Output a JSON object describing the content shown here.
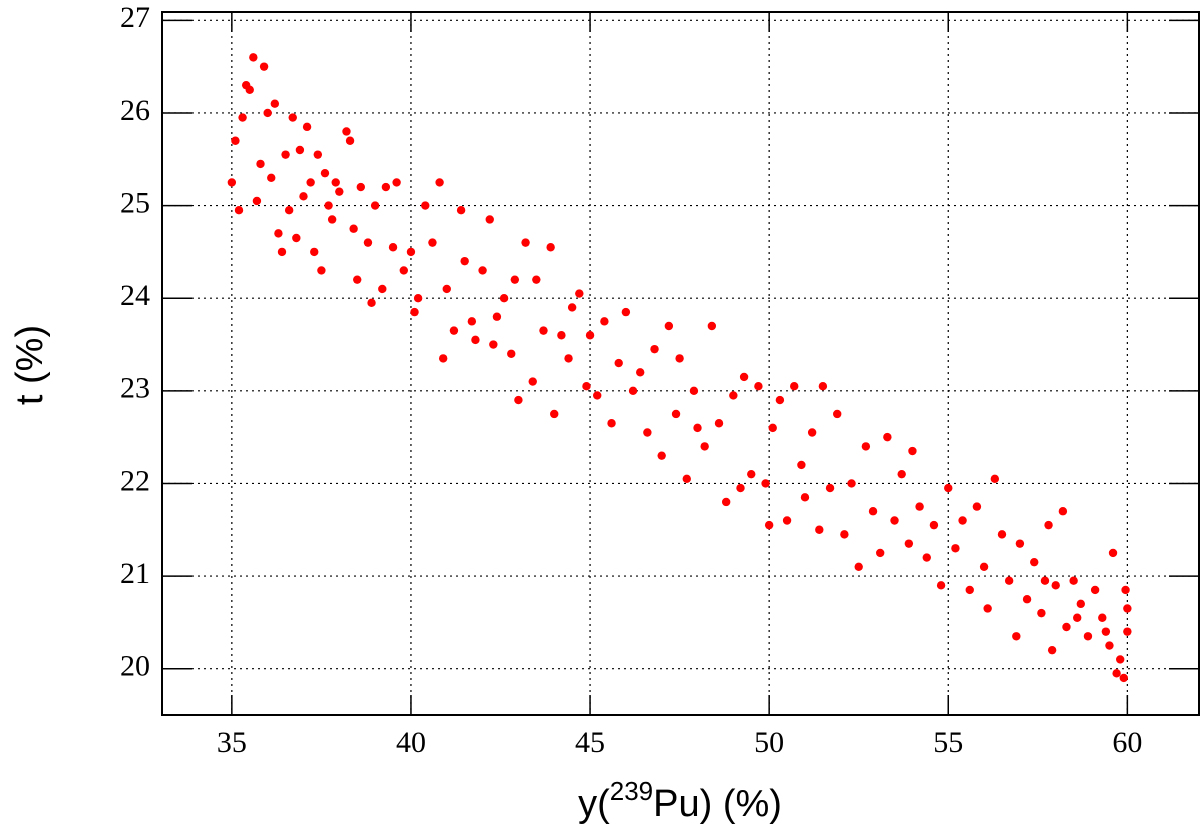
{
  "chart_data": {
    "type": "scatter",
    "xlabel_parts": [
      "y(",
      "239",
      "Pu) (%)"
    ],
    "ylabel": "t (%)",
    "xlim": [
      33.05,
      62.0
    ],
    "ylim": [
      19.5,
      27.09
    ],
    "xticks": [
      35,
      40,
      45,
      50,
      55,
      60
    ],
    "yticks": [
      20,
      21,
      22,
      23,
      24,
      25,
      26,
      27
    ],
    "grid": true,
    "series": [
      {
        "color": "#ff0000",
        "x": [
          35.0,
          35.1,
          35.2,
          35.3,
          35.4,
          35.5,
          35.6,
          35.7,
          35.8,
          35.9,
          36.0,
          36.1,
          36.2,
          36.3,
          36.4,
          36.5,
          36.6,
          36.7,
          36.8,
          36.9,
          37.0,
          37.1,
          37.2,
          37.3,
          37.4,
          37.5,
          37.6,
          37.7,
          37.8,
          37.9,
          38.0,
          38.2,
          38.3,
          38.4,
          38.5,
          38.6,
          38.8,
          38.9,
          39.0,
          39.2,
          39.3,
          39.5,
          39.6,
          39.8,
          40.0,
          40.1,
          40.2,
          40.4,
          40.6,
          40.8,
          40.9,
          41.0,
          41.2,
          41.4,
          41.5,
          41.7,
          41.8,
          42.0,
          42.2,
          42.3,
          42.4,
          42.6,
          42.8,
          42.9,
          43.0,
          43.2,
          43.4,
          43.5,
          43.7,
          43.9,
          44.0,
          44.2,
          44.4,
          44.5,
          44.7,
          44.9,
          45.0,
          45.2,
          45.4,
          45.6,
          45.8,
          46.0,
          46.2,
          46.4,
          46.6,
          46.8,
          47.0,
          47.2,
          47.4,
          47.5,
          47.7,
          47.9,
          48.0,
          48.2,
          48.4,
          48.6,
          48.8,
          49.0,
          49.2,
          49.3,
          49.5,
          49.7,
          49.9,
          50.0,
          50.1,
          50.3,
          50.5,
          50.7,
          50.9,
          51.0,
          51.2,
          51.4,
          51.5,
          51.7,
          51.9,
          52.1,
          52.3,
          52.5,
          52.7,
          52.9,
          53.1,
          53.3,
          53.5,
          53.7,
          53.9,
          54.0,
          54.2,
          54.4,
          54.6,
          54.8,
          55.0,
          55.2,
          55.4,
          55.6,
          55.8,
          56.0,
          56.1,
          56.3,
          56.5,
          56.7,
          56.9,
          57.0,
          57.2,
          57.4,
          57.6,
          57.8,
          57.9,
          58.0,
          58.2,
          58.3,
          58.5,
          58.7,
          58.9,
          59.1,
          59.3,
          59.5,
          59.6,
          59.7,
          59.8,
          59.9,
          60.0,
          59.95,
          60.0,
          59.4,
          58.6,
          57.7
        ],
        "y": [
          25.25,
          25.7,
          24.95,
          25.95,
          26.3,
          26.25,
          26.6,
          25.05,
          25.45,
          26.5,
          26.0,
          25.3,
          26.1,
          24.7,
          24.5,
          25.55,
          24.95,
          25.95,
          24.65,
          25.6,
          25.1,
          25.85,
          25.25,
          24.5,
          25.55,
          24.3,
          25.35,
          25.0,
          24.85,
          25.25,
          25.15,
          25.8,
          25.7,
          24.75,
          24.2,
          25.2,
          24.6,
          23.95,
          25.0,
          24.1,
          25.2,
          24.55,
          25.25,
          24.3,
          24.5,
          23.85,
          24.0,
          25.0,
          24.6,
          25.25,
          23.35,
          24.1,
          23.65,
          24.95,
          24.4,
          23.75,
          23.55,
          24.3,
          24.85,
          23.5,
          23.8,
          24.0,
          23.4,
          24.2,
          22.9,
          24.6,
          23.1,
          24.2,
          23.65,
          24.55,
          22.75,
          23.6,
          23.35,
          23.9,
          24.05,
          23.05,
          23.6,
          22.95,
          23.75,
          22.65,
          23.3,
          23.85,
          23.0,
          23.2,
          22.55,
          23.45,
          22.3,
          23.7,
          22.75,
          23.35,
          22.05,
          23.0,
          22.6,
          22.4,
          23.7,
          22.65,
          21.8,
          22.95,
          21.95,
          23.15,
          22.1,
          23.05,
          22.0,
          21.55,
          22.6,
          22.9,
          21.6,
          23.05,
          22.2,
          21.85,
          22.55,
          21.5,
          23.05,
          21.95,
          22.75,
          21.45,
          22.0,
          21.1,
          22.4,
          21.7,
          21.25,
          22.5,
          21.6,
          22.1,
          21.35,
          22.35,
          21.75,
          21.2,
          21.55,
          20.9,
          21.95,
          21.3,
          21.6,
          20.85,
          21.75,
          21.1,
          20.65,
          22.05,
          21.45,
          20.95,
          20.35,
          21.35,
          20.75,
          21.15,
          20.6,
          21.55,
          20.2,
          20.9,
          21.7,
          20.45,
          20.95,
          20.7,
          20.35,
          20.85,
          20.55,
          20.25,
          21.25,
          19.95,
          20.1,
          19.9,
          20.4,
          20.85,
          20.65,
          20.4,
          20.55,
          20.95
        ]
      }
    ]
  }
}
